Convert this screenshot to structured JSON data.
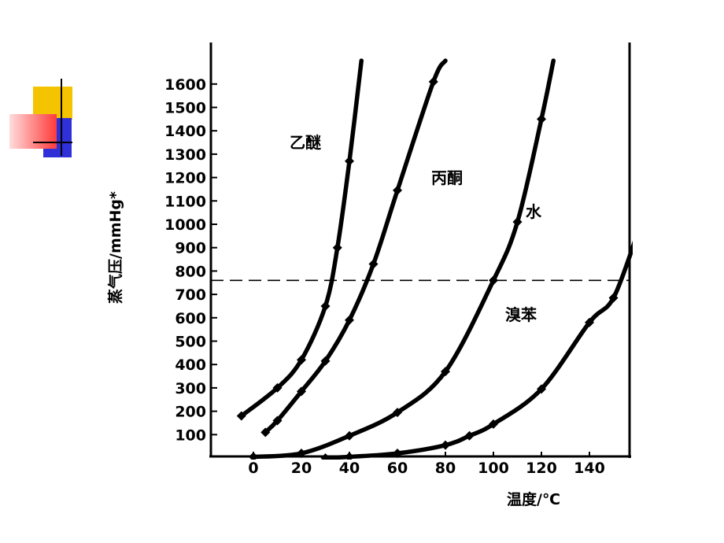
{
  "colors": {
    "accent_yellow": "#f5c400",
    "accent_red": "#ff4a4a",
    "accent_blue": "#3030d8",
    "ink": "#000000"
  },
  "chart_data": {
    "type": "line",
    "title": "",
    "xlabel": "温度/℃",
    "ylabel": "蒸气压/mmHg*",
    "xlim": [
      -20,
      160
    ],
    "ylim": [
      0,
      1700
    ],
    "x_ticks": [
      0,
      20,
      40,
      60,
      80,
      100,
      120,
      140
    ],
    "y_ticks": [
      100,
      200,
      300,
      400,
      500,
      600,
      700,
      800,
      900,
      1000,
      1100,
      1200,
      1300,
      1400,
      1500,
      1600
    ],
    "reference_line": {
      "y": 760,
      "style": "dashed"
    },
    "grid": false,
    "series": [
      {
        "name": "乙醚",
        "points": [
          [
            -5,
            180
          ],
          [
            10,
            300
          ],
          [
            20,
            420
          ],
          [
            30,
            650
          ],
          [
            35,
            900
          ],
          [
            40,
            1270
          ],
          [
            45,
            1700
          ]
        ]
      },
      {
        "name": "丙酮",
        "points": [
          [
            5,
            110
          ],
          [
            10,
            160
          ],
          [
            20,
            285
          ],
          [
            30,
            415
          ],
          [
            40,
            590
          ],
          [
            50,
            830
          ],
          [
            60,
            1145
          ],
          [
            75,
            1610
          ],
          [
            80,
            1700
          ]
        ]
      },
      {
        "name": "水",
        "points": [
          [
            0,
            5
          ],
          [
            20,
            20
          ],
          [
            40,
            95
          ],
          [
            60,
            195
          ],
          [
            80,
            370
          ],
          [
            100,
            760
          ],
          [
            110,
            1010
          ],
          [
            120,
            1450
          ],
          [
            125,
            1700
          ]
        ]
      },
      {
        "name": "溴苯",
        "points": [
          [
            30,
            0
          ],
          [
            40,
            5
          ],
          [
            60,
            20
          ],
          [
            80,
            55
          ],
          [
            90,
            95
          ],
          [
            100,
            145
          ],
          [
            120,
            295
          ],
          [
            140,
            580
          ],
          [
            150,
            685
          ],
          [
            160,
            960
          ]
        ]
      }
    ]
  }
}
